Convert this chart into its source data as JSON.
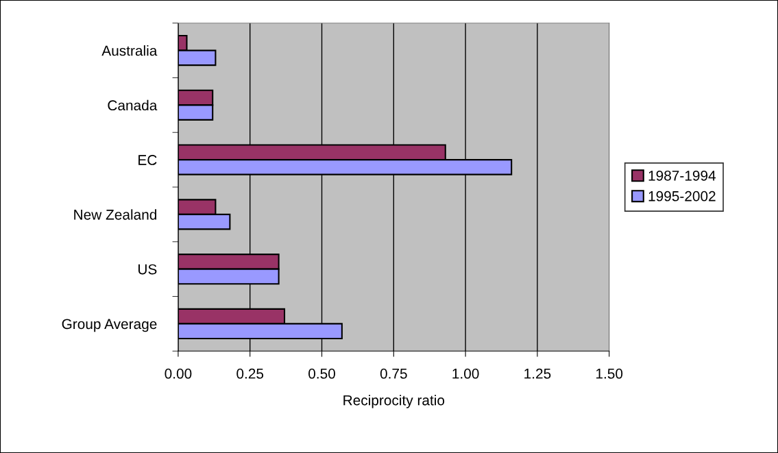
{
  "chart_data": {
    "type": "bar",
    "orientation": "horizontal",
    "xlabel": "Reciprocity ratio",
    "categories": [
      "Australia",
      "Canada",
      "EC",
      "New Zealand",
      "US",
      "Group Average"
    ],
    "series": [
      {
        "name": "1987-1994",
        "color": "#993366",
        "values": [
          0.03,
          0.12,
          0.93,
          0.13,
          0.35,
          0.37
        ]
      },
      {
        "name": "1995-2002",
        "color": "#9999ff",
        "values": [
          0.13,
          0.12,
          1.16,
          0.18,
          0.35,
          0.57
        ]
      }
    ],
    "xlim": [
      0,
      1.5
    ],
    "xticks": [
      {
        "value": 0,
        "label": "0.00"
      },
      {
        "value": 0.25,
        "label": "0.25"
      },
      {
        "value": 0.5,
        "label": "0.50"
      },
      {
        "value": 0.75,
        "label": "0.75"
      },
      {
        "value": 1.0,
        "label": "1.00"
      },
      {
        "value": 1.25,
        "label": "1.25"
      },
      {
        "value": 1.5,
        "label": "1.50"
      }
    ],
    "grid": "x",
    "legend": "right"
  }
}
